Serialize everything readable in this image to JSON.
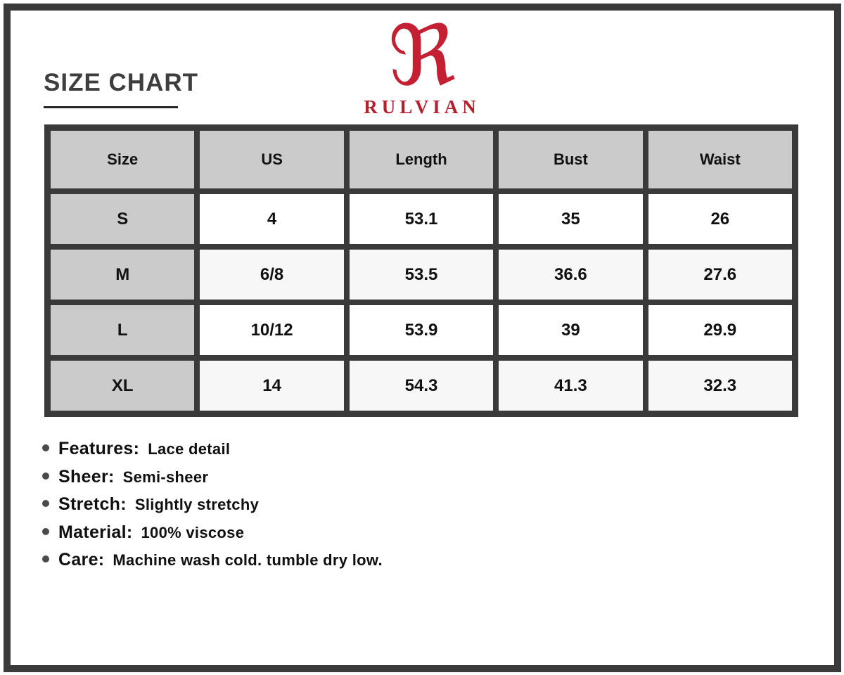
{
  "page": {
    "title": "SIZE CHART"
  },
  "brand": {
    "name": "RULVIAN",
    "logo_glyph": "ℜ",
    "accent_color": "#c32133"
  },
  "size_chart": {
    "columns": [
      "Size",
      "US",
      "Length",
      "Bust",
      "Waist"
    ],
    "rows": [
      {
        "size": "S",
        "us": "4",
        "length": "53.1",
        "bust": "35",
        "waist": "26"
      },
      {
        "size": "M",
        "us": "6/8",
        "length": "53.5",
        "bust": "36.6",
        "waist": "27.6"
      },
      {
        "size": "L",
        "us": "10/12",
        "length": "53.9",
        "bust": "39",
        "waist": "29.9"
      },
      {
        "size": "XL",
        "us": "14",
        "length": "54.3",
        "bust": "41.3",
        "waist": "32.3"
      }
    ]
  },
  "details": [
    {
      "label": "Features:",
      "value": "Lace detail"
    },
    {
      "label": "Sheer:",
      "value": "Semi-sheer"
    },
    {
      "label": "Stretch:",
      "value": "Slightly stretchy"
    },
    {
      "label": "Material:",
      "value": "100% viscose"
    },
    {
      "label": "Care:",
      "value": "Machine wash cold. tumble dry low."
    }
  ],
  "colors": {
    "frame_and_grid": "#3a3a3a",
    "header_bg": "#cbcbcb",
    "alt_row_bg": "#f7f7f7",
    "brand_red": "#c32133",
    "title_text": "#3e3e3e"
  }
}
